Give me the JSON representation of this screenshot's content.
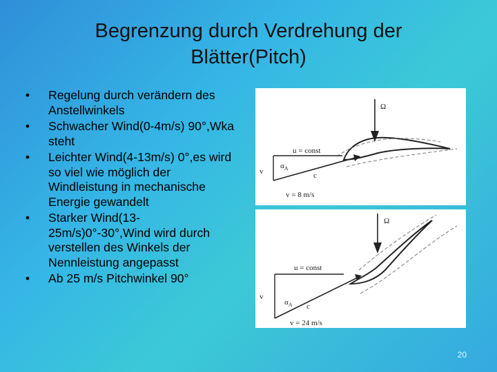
{
  "slide": {
    "title_line1": "Begrenzung durch Verdrehung der",
    "title_line2": "Blätter(Pitch)",
    "bullets": [
      {
        "text": "Regelung durch verändern des Anstellwinkels"
      },
      {
        "text": "Schwacher Wind(0-4m/s) 90°,Wka steht"
      },
      {
        "text": "Leichter Wind(4-13m/s) 0°,es wird so viel wie möglich der Windleistung in mechanische Energie gewandelt"
      },
      {
        "text": "Starker Wind(13-25m/s)0°-30°,Wind wird durch verstellen des Winkels der Nennleistung angepasst"
      },
      {
        "text": "Ab 25 m/s Pitchwinkel 90°"
      }
    ],
    "page_number": "20"
  },
  "diagram_top": {
    "omega": "Ω",
    "u_label": "u = const",
    "alpha_label": "α",
    "alpha_sub": "A",
    "c_label": "c",
    "v_label": "v",
    "v_value": "v = 8 m/s"
  },
  "diagram_bottom": {
    "omega": "Ω",
    "u_label": "u = const",
    "alpha_label": "α",
    "alpha_sub": "A",
    "c_label": "c",
    "v_label": "v",
    "v_value": "v = 24 m/s"
  }
}
